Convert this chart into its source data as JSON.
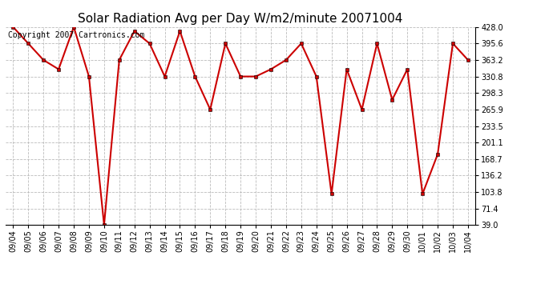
{
  "title": "Solar Radiation Avg per Day W/m2/minute 20071004",
  "copyright": "Copyright 2007 Cartronics.com",
  "dates": [
    "09/04",
    "09/05",
    "09/06",
    "09/07",
    "09/08",
    "09/09",
    "09/10",
    "09/11",
    "09/12",
    "09/13",
    "09/14",
    "09/15",
    "09/16",
    "09/17",
    "09/18",
    "09/19",
    "09/20",
    "09/21",
    "09/22",
    "09/23",
    "09/24",
    "09/25",
    "09/26",
    "09/27",
    "09/28",
    "09/29",
    "09/30",
    "10/01",
    "10/02",
    "10/03",
    "10/04"
  ],
  "values": [
    428.0,
    395.6,
    363.2,
    345.0,
    428.0,
    330.8,
    39.0,
    363.2,
    420.0,
    395.6,
    330.8,
    420.0,
    330.8,
    265.9,
    395.6,
    330.8,
    330.8,
    345.0,
    363.2,
    395.6,
    330.8,
    100.0,
    345.0,
    265.9,
    395.6,
    285.0,
    345.0,
    100.0,
    178.0,
    395.6,
    363.2
  ],
  "yticks": [
    39.0,
    71.4,
    103.8,
    136.2,
    168.7,
    201.1,
    233.5,
    265.9,
    298.3,
    330.8,
    363.2,
    395.6,
    428.0
  ],
  "ylim": [
    39.0,
    428.0
  ],
  "line_color": "#cc0000",
  "marker_color": "#cc0000",
  "bg_color": "#ffffff",
  "grid_color": "#bbbbbb",
  "title_fontsize": 11,
  "copyright_fontsize": 7,
  "fig_width": 6.9,
  "fig_height": 3.75,
  "dpi": 100
}
